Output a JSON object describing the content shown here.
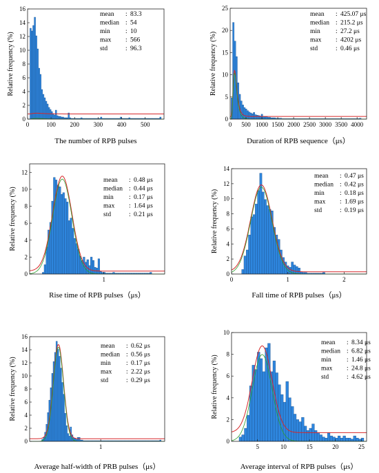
{
  "chart_data": [
    {
      "type": "bar",
      "xlabel": "The number of RPB pulses",
      "ylabel": "Relative frequency (%)",
      "xlim": [
        0,
        580
      ],
      "ylim": [
        0,
        16
      ],
      "xticks": [
        0,
        100,
        200,
        300,
        400,
        500
      ],
      "yticks": [
        0,
        2,
        4,
        6,
        8,
        10,
        12,
        14,
        16
      ],
      "stats": [
        {
          "label": "mean",
          "sep": ":",
          "value": "83.3"
        },
        {
          "label": "median",
          "sep": ":",
          "value": "54"
        },
        {
          "label": "min",
          "sep": ":",
          "value": "10"
        },
        {
          "label": "max",
          "sep": ":",
          "value": "566"
        },
        {
          "label": "std",
          "sep": ":",
          "value": "96.3"
        }
      ],
      "bins": {
        "start": 10,
        "width": 6,
        "values": [
          13.2,
          12.8,
          13.6,
          14.8,
          12.1,
          10.2,
          7.4,
          6.5,
          4.3,
          3.6,
          3.1,
          2.6,
          2.2,
          1.7,
          1.4,
          1.1,
          0.8,
          0.6,
          1.3,
          0.5,
          0.4,
          0.4,
          0.3,
          0.3,
          0.2,
          0.2,
          0.2,
          0.9,
          0.2,
          0.1,
          0.1,
          0.1,
          0.1,
          0.1,
          0.1,
          0.1,
          0.2,
          0.1,
          0.1,
          0.1,
          0.1,
          0.1,
          0.1,
          0.1,
          0.1,
          0.1,
          0.1,
          0.1,
          0.1,
          0.1,
          0.3,
          0.1,
          0.1,
          0.1,
          0.1,
          0.1,
          0.1,
          0.1,
          0.1,
          0.1,
          0.1,
          0.1,
          0.1,
          0.1,
          0.3,
          0.1,
          0.1,
          0.1,
          0.1,
          0.1,
          0.2,
          0.1,
          0.1,
          0.1,
          0.1,
          0.1,
          0.1,
          0.1,
          0.1,
          0.1,
          0.1,
          0.1,
          0.1,
          0.1,
          0.1,
          0.1,
          0.1,
          0.1,
          0.1,
          0.1,
          0.1,
          0.1,
          0.3
        ]
      },
      "fit": {
        "kind": "lognormal",
        "mu": 3.95,
        "sigma": 0.55,
        "scale": 6.8,
        "baseline": 0.75,
        "color": "#d62728",
        "color2": "#2ca02c"
      },
      "bar_color": "#2e86de",
      "bar_edge": "#1b4f8a"
    },
    {
      "type": "bar",
      "xlabel": "Duration of RPB sequence（μs）",
      "ylabel": "Relative frequency (%)",
      "xlim": [
        0,
        4300
      ],
      "ylim": [
        0,
        25
      ],
      "xticks": [
        0,
        500,
        1000,
        1500,
        2000,
        2500,
        3000,
        3500,
        4000
      ],
      "yticks": [
        0,
        5,
        10,
        15,
        20,
        25
      ],
      "stats": [
        {
          "label": "mean",
          "sep": ":",
          "value": "425.07 μs"
        },
        {
          "label": "median",
          "sep": ":",
          "value": "215.2  μs"
        },
        {
          "label": "min",
          "sep": ":",
          "value": "27.2  μs"
        },
        {
          "label": "max",
          "sep": ":",
          "value": "4202  μs"
        },
        {
          "label": "std",
          "sep": ":",
          "value": "0.46  μs"
        }
      ],
      "bins": {
        "start": 27,
        "width": 50,
        "values": [
          4.8,
          21.8,
          17.6,
          14.1,
          8.2,
          5.6,
          4.1,
          3.2,
          2.6,
          2.3,
          1.9,
          1.6,
          1.4,
          1.2,
          1.5,
          1.0,
          0.9,
          0.8,
          0.7,
          1.1,
          0.6,
          0.5,
          0.5,
          0.4,
          0.4,
          0.3,
          0.3,
          0.3,
          0.2,
          0.2,
          0.2,
          0.2,
          0.1,
          0.1,
          0.1,
          0.1,
          0.1,
          0.1,
          0.1,
          0.1,
          0.1,
          0.1,
          0.1,
          0.1,
          0.1,
          0.1,
          0.1,
          0.1,
          0.1,
          0.1,
          0.1,
          0.1,
          0.1,
          0.1,
          0.1,
          0.1,
          0.1,
          0.1,
          0.1,
          0.1,
          0.1,
          0.1,
          0.1,
          0.1,
          0.1,
          0.1,
          0.1,
          0.1,
          0.1,
          0.1,
          0.1,
          0.1,
          0.1,
          0.1,
          0.1,
          0.1,
          0.1,
          0.1,
          0.1,
          0.1,
          0.1,
          0.2
        ]
      },
      "fit": {
        "kind": "lognormal",
        "mu": 5.1,
        "sigma": 0.42,
        "scale": 1650,
        "baseline": 0.6,
        "color": "#d62728",
        "color2": "#2ca02c"
      },
      "bar_color": "#2e86de",
      "bar_edge": "#1b4f8a"
    },
    {
      "type": "bar",
      "xlabel": "Rise time of RPB pulses（μs）",
      "ylabel": "Relative frequency (%)",
      "xlim": [
        0,
        1.82
      ],
      "ylim": [
        0,
        13
      ],
      "xticks": [
        1
      ],
      "yticks": [
        0,
        2,
        4,
        6,
        8,
        10,
        12
      ],
      "stats": [
        {
          "label": "mean",
          "sep": ":",
          "value": "0.48 μs"
        },
        {
          "label": "median",
          "sep": ":",
          "value": "0.44 μs"
        },
        {
          "label": "min",
          "sep": ":",
          "value": "0.17 μs"
        },
        {
          "label": "max",
          "sep": ":",
          "value": "1.64 μs"
        },
        {
          "label": "std",
          "sep": ":",
          "value": "0.21 μs"
        }
      ],
      "bins": {
        "start": 0.17,
        "width": 0.025,
        "values": [
          0.2,
          1.1,
          3.2,
          5.2,
          6.1,
          8.6,
          11.4,
          11.1,
          10.5,
          10.3,
          9.4,
          9.6,
          8.9,
          8.5,
          6.3,
          6.6,
          5.4,
          4.2,
          3.6,
          2.9,
          2.1,
          1.6,
          2.0,
          1.4,
          1.7,
          1.0,
          2.0,
          1.6,
          0.8,
          0.7,
          1.8,
          0.3,
          0.2,
          0.2,
          0.1,
          0.1,
          0.1,
          0.1,
          0.2,
          0.1,
          0.1,
          0.1,
          0.1,
          0.1,
          0.1,
          0.1,
          0.1,
          0.1,
          0.1,
          0.1,
          0.1,
          0.1,
          0.1,
          0.1,
          0.1,
          0.1,
          0.1,
          0.1,
          0.2
        ]
      },
      "fit": {
        "kind": "normal",
        "mean": 0.44,
        "sd": 0.13,
        "scale": 3.65,
        "baseline": 0.35,
        "color": "#d62728",
        "color2": "#2ca02c"
      },
      "bar_color": "#2e86de",
      "bar_edge": "#1b4f8a"
    },
    {
      "type": "bar",
      "xlabel": "Fall time of RPB pulses（μs）",
      "ylabel": "Relative frequency (%)",
      "xlim": [
        0,
        2.4
      ],
      "ylim": [
        0,
        14
      ],
      "xticks": [
        0,
        1,
        2
      ],
      "yticks": [
        0,
        2,
        4,
        6,
        8,
        10,
        12,
        14
      ],
      "stats": [
        {
          "label": "mean",
          "sep": ":",
          "value": "0.47 μs"
        },
        {
          "label": "median",
          "sep": ":",
          "value": "0.42 μs"
        },
        {
          "label": "min",
          "sep": ":",
          "value": "0.18 μs"
        },
        {
          "label": "max",
          "sep": ":",
          "value": "1.69 μs"
        },
        {
          "label": "std",
          "sep": ":",
          "value": "0.19 μs"
        }
      ],
      "bins": {
        "start": 0.18,
        "width": 0.04,
        "values": [
          0.6,
          2.4,
          3.2,
          5.2,
          7.6,
          7.9,
          9.3,
          11.1,
          13.4,
          10.9,
          9.9,
          9.1,
          8.6,
          8.4,
          6.2,
          5.2,
          4.6,
          3.2,
          2.2,
          1.6,
          1.1,
          0.9,
          1.6,
          1.2,
          1.0,
          0.8,
          0.3,
          0.2,
          0.2,
          0.1,
          0.1,
          0.1,
          0.1,
          0.1,
          0.1,
          0.1,
          0.2
        ]
      },
      "fit": {
        "kind": "normal",
        "mean": 0.53,
        "sd": 0.19,
        "scale": 5.5,
        "baseline": 0.3,
        "color": "#d62728",
        "color2": "#2ca02c"
      },
      "bar_color": "#2e86de",
      "bar_edge": "#1b4f8a"
    },
    {
      "type": "bar",
      "xlabel": "Average half-width of PRB pulses（μs）",
      "ylabel": "Relative frequency (%)",
      "xlim": [
        0,
        1.9
      ],
      "ylim": [
        0,
        16
      ],
      "xticks": [
        1
      ],
      "yticks": [
        0,
        2,
        4,
        6,
        8,
        10,
        12,
        14,
        16
      ],
      "stats": [
        {
          "label": "mean",
          "sep": ":",
          "value": "0.62 μs"
        },
        {
          "label": "median",
          "sep": ":",
          "value": "0.56 μs"
        },
        {
          "label": "min",
          "sep": ":",
          "value": "0.17 μs"
        },
        {
          "label": "max",
          "sep": ":",
          "value": "2.22 μs"
        },
        {
          "label": "std",
          "sep": ":",
          "value": "0.29 μs"
        }
      ],
      "bins": {
        "start": 0.17,
        "width": 0.02,
        "values": [
          0.3,
          0.6,
          1.4,
          2.6,
          4.4,
          6.3,
          8.2,
          10.4,
          12.2,
          13.6,
          15.3,
          14.1,
          13.0,
          11.2,
          9.0,
          7.2,
          4.3,
          2.4,
          1.2,
          0.8,
          2.2,
          1.0,
          0.5,
          0.5,
          0.3,
          0.6,
          0.6,
          0.2,
          0.2,
          0.1,
          0.1,
          0.1,
          0.1,
          0.1,
          0.1,
          0.1,
          0.1,
          0.1,
          0.1,
          0.1,
          0.1,
          0.1,
          0.1,
          0.1,
          0.1,
          0.1,
          0.1,
          0.1,
          0.1,
          0.1,
          0.1,
          0.1,
          0.1,
          0.1,
          0.1,
          0.1,
          0.1,
          0.1,
          0.1,
          0.1,
          0.1,
          0.1,
          0.1,
          0.1,
          0.1,
          0.1,
          0.1,
          0.1,
          0.1,
          0.1,
          0.1,
          0.1,
          0.1,
          0.1,
          0.1,
          0.1,
          0.1,
          0.1,
          0.1,
          0.1,
          0.1,
          0.1,
          0.1,
          0.2
        ]
      },
      "fit": {
        "kind": "normal",
        "mean": 0.405,
        "sd": 0.072,
        "scale": 2.6,
        "baseline": 0.4,
        "color": "#d62728",
        "color2": "#2ca02c"
      },
      "bar_color": "#2e86de",
      "bar_edge": "#1b4f8a"
    },
    {
      "type": "bar",
      "xlabel": "Average interval of RPB pulses（μs）",
      "ylabel": "Relative frequency (%)",
      "xlim": [
        0,
        26
      ],
      "ylim": [
        0,
        10
      ],
      "xticks": [
        5,
        10,
        15,
        20,
        25
      ],
      "yticks": [
        0,
        2,
        4,
        6,
        8,
        10
      ],
      "stats": [
        {
          "label": "mean",
          "sep": ":",
          "value": "8.34 μs"
        },
        {
          "label": "median",
          "sep": ":",
          "value": "6.82 μs"
        },
        {
          "label": "min",
          "sep": ":",
          "value": "1.46 μs"
        },
        {
          "label": "max",
          "sep": ":",
          "value": "24.8 μs"
        },
        {
          "label": "std",
          "sep": ":",
          "value": "4.62 μs"
        }
      ],
      "bins": {
        "start": 1.46,
        "width": 0.5,
        "values": [
          0.4,
          0.6,
          1.2,
          2.4,
          5.1,
          7.0,
          6.6,
          8.2,
          7.6,
          6.4,
          8.6,
          9.0,
          6.4,
          7.4,
          6.3,
          5.2,
          4.3,
          3.6,
          5.5,
          4.0,
          3.2,
          2.5,
          2.0,
          1.8,
          2.2,
          1.4,
          1.0,
          1.2,
          1.6,
          1.0,
          0.8,
          0.6,
          0.4,
          0.3,
          0.8,
          0.5,
          0.4,
          0.3,
          0.5,
          0.3,
          0.5,
          0.3,
          0.3,
          0.2,
          0.5,
          0.3,
          0.2,
          0.3
        ]
      },
      "fit": {
        "kind": "normal",
        "mean": 5.9,
        "sd": 1.9,
        "scale": 38,
        "baseline": 0.8,
        "color": "#d62728",
        "color2": "#2ca02c"
      },
      "bar_color": "#2e86de",
      "bar_edge": "#1b4f8a"
    }
  ]
}
